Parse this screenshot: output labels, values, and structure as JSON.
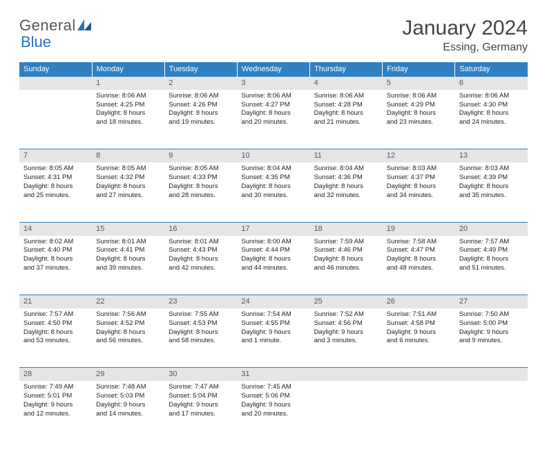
{
  "brand": {
    "part1": "General",
    "part2": "Blue"
  },
  "title": "January 2024",
  "location": "Essing, Germany",
  "colors": {
    "header_bg": "#2e80c3",
    "header_text": "#ffffff",
    "daynum_bg": "#e5e5e5",
    "daynum_border": "#2e80c3",
    "brand_gray": "#555555",
    "brand_blue": "#2a72b5",
    "text": "#222222"
  },
  "day_headers": [
    "Sunday",
    "Monday",
    "Tuesday",
    "Wednesday",
    "Thursday",
    "Friday",
    "Saturday"
  ],
  "weeks": [
    {
      "nums": [
        "",
        "1",
        "2",
        "3",
        "4",
        "5",
        "6"
      ],
      "cells": [
        {
          "lines": []
        },
        {
          "lines": [
            "Sunrise: 8:06 AM",
            "Sunset: 4:25 PM",
            "Daylight: 8 hours",
            "and 18 minutes."
          ]
        },
        {
          "lines": [
            "Sunrise: 8:06 AM",
            "Sunset: 4:26 PM",
            "Daylight: 8 hours",
            "and 19 minutes."
          ]
        },
        {
          "lines": [
            "Sunrise: 8:06 AM",
            "Sunset: 4:27 PM",
            "Daylight: 8 hours",
            "and 20 minutes."
          ]
        },
        {
          "lines": [
            "Sunrise: 8:06 AM",
            "Sunset: 4:28 PM",
            "Daylight: 8 hours",
            "and 21 minutes."
          ]
        },
        {
          "lines": [
            "Sunrise: 8:06 AM",
            "Sunset: 4:29 PM",
            "Daylight: 8 hours",
            "and 23 minutes."
          ]
        },
        {
          "lines": [
            "Sunrise: 8:06 AM",
            "Sunset: 4:30 PM",
            "Daylight: 8 hours",
            "and 24 minutes."
          ]
        }
      ]
    },
    {
      "nums": [
        "7",
        "8",
        "9",
        "10",
        "11",
        "12",
        "13"
      ],
      "cells": [
        {
          "lines": [
            "Sunrise: 8:05 AM",
            "Sunset: 4:31 PM",
            "Daylight: 8 hours",
            "and 25 minutes."
          ]
        },
        {
          "lines": [
            "Sunrise: 8:05 AM",
            "Sunset: 4:32 PM",
            "Daylight: 8 hours",
            "and 27 minutes."
          ]
        },
        {
          "lines": [
            "Sunrise: 8:05 AM",
            "Sunset: 4:33 PM",
            "Daylight: 8 hours",
            "and 28 minutes."
          ]
        },
        {
          "lines": [
            "Sunrise: 8:04 AM",
            "Sunset: 4:35 PM",
            "Daylight: 8 hours",
            "and 30 minutes."
          ]
        },
        {
          "lines": [
            "Sunrise: 8:04 AM",
            "Sunset: 4:36 PM",
            "Daylight: 8 hours",
            "and 32 minutes."
          ]
        },
        {
          "lines": [
            "Sunrise: 8:03 AM",
            "Sunset: 4:37 PM",
            "Daylight: 8 hours",
            "and 34 minutes."
          ]
        },
        {
          "lines": [
            "Sunrise: 8:03 AM",
            "Sunset: 4:39 PM",
            "Daylight: 8 hours",
            "and 35 minutes."
          ]
        }
      ]
    },
    {
      "nums": [
        "14",
        "15",
        "16",
        "17",
        "18",
        "19",
        "20"
      ],
      "cells": [
        {
          "lines": [
            "Sunrise: 8:02 AM",
            "Sunset: 4:40 PM",
            "Daylight: 8 hours",
            "and 37 minutes."
          ]
        },
        {
          "lines": [
            "Sunrise: 8:01 AM",
            "Sunset: 4:41 PM",
            "Daylight: 8 hours",
            "and 39 minutes."
          ]
        },
        {
          "lines": [
            "Sunrise: 8:01 AM",
            "Sunset: 4:43 PM",
            "Daylight: 8 hours",
            "and 42 minutes."
          ]
        },
        {
          "lines": [
            "Sunrise: 8:00 AM",
            "Sunset: 4:44 PM",
            "Daylight: 8 hours",
            "and 44 minutes."
          ]
        },
        {
          "lines": [
            "Sunrise: 7:59 AM",
            "Sunset: 4:46 PM",
            "Daylight: 8 hours",
            "and 46 minutes."
          ]
        },
        {
          "lines": [
            "Sunrise: 7:58 AM",
            "Sunset: 4:47 PM",
            "Daylight: 8 hours",
            "and 48 minutes."
          ]
        },
        {
          "lines": [
            "Sunrise: 7:57 AM",
            "Sunset: 4:49 PM",
            "Daylight: 8 hours",
            "and 51 minutes."
          ]
        }
      ]
    },
    {
      "nums": [
        "21",
        "22",
        "23",
        "24",
        "25",
        "26",
        "27"
      ],
      "cells": [
        {
          "lines": [
            "Sunrise: 7:57 AM",
            "Sunset: 4:50 PM",
            "Daylight: 8 hours",
            "and 53 minutes."
          ]
        },
        {
          "lines": [
            "Sunrise: 7:56 AM",
            "Sunset: 4:52 PM",
            "Daylight: 8 hours",
            "and 56 minutes."
          ]
        },
        {
          "lines": [
            "Sunrise: 7:55 AM",
            "Sunset: 4:53 PM",
            "Daylight: 8 hours",
            "and 58 minutes."
          ]
        },
        {
          "lines": [
            "Sunrise: 7:54 AM",
            "Sunset: 4:55 PM",
            "Daylight: 9 hours",
            "and 1 minute."
          ]
        },
        {
          "lines": [
            "Sunrise: 7:52 AM",
            "Sunset: 4:56 PM",
            "Daylight: 9 hours",
            "and 3 minutes."
          ]
        },
        {
          "lines": [
            "Sunrise: 7:51 AM",
            "Sunset: 4:58 PM",
            "Daylight: 9 hours",
            "and 6 minutes."
          ]
        },
        {
          "lines": [
            "Sunrise: 7:50 AM",
            "Sunset: 5:00 PM",
            "Daylight: 9 hours",
            "and 9 minutes."
          ]
        }
      ]
    },
    {
      "nums": [
        "28",
        "29",
        "30",
        "31",
        "",
        "",
        ""
      ],
      "cells": [
        {
          "lines": [
            "Sunrise: 7:49 AM",
            "Sunset: 5:01 PM",
            "Daylight: 9 hours",
            "and 12 minutes."
          ]
        },
        {
          "lines": [
            "Sunrise: 7:48 AM",
            "Sunset: 5:03 PM",
            "Daylight: 9 hours",
            "and 14 minutes."
          ]
        },
        {
          "lines": [
            "Sunrise: 7:47 AM",
            "Sunset: 5:04 PM",
            "Daylight: 9 hours",
            "and 17 minutes."
          ]
        },
        {
          "lines": [
            "Sunrise: 7:45 AM",
            "Sunset: 5:06 PM",
            "Daylight: 9 hours",
            "and 20 minutes."
          ]
        },
        {
          "lines": []
        },
        {
          "lines": []
        },
        {
          "lines": []
        }
      ]
    }
  ]
}
